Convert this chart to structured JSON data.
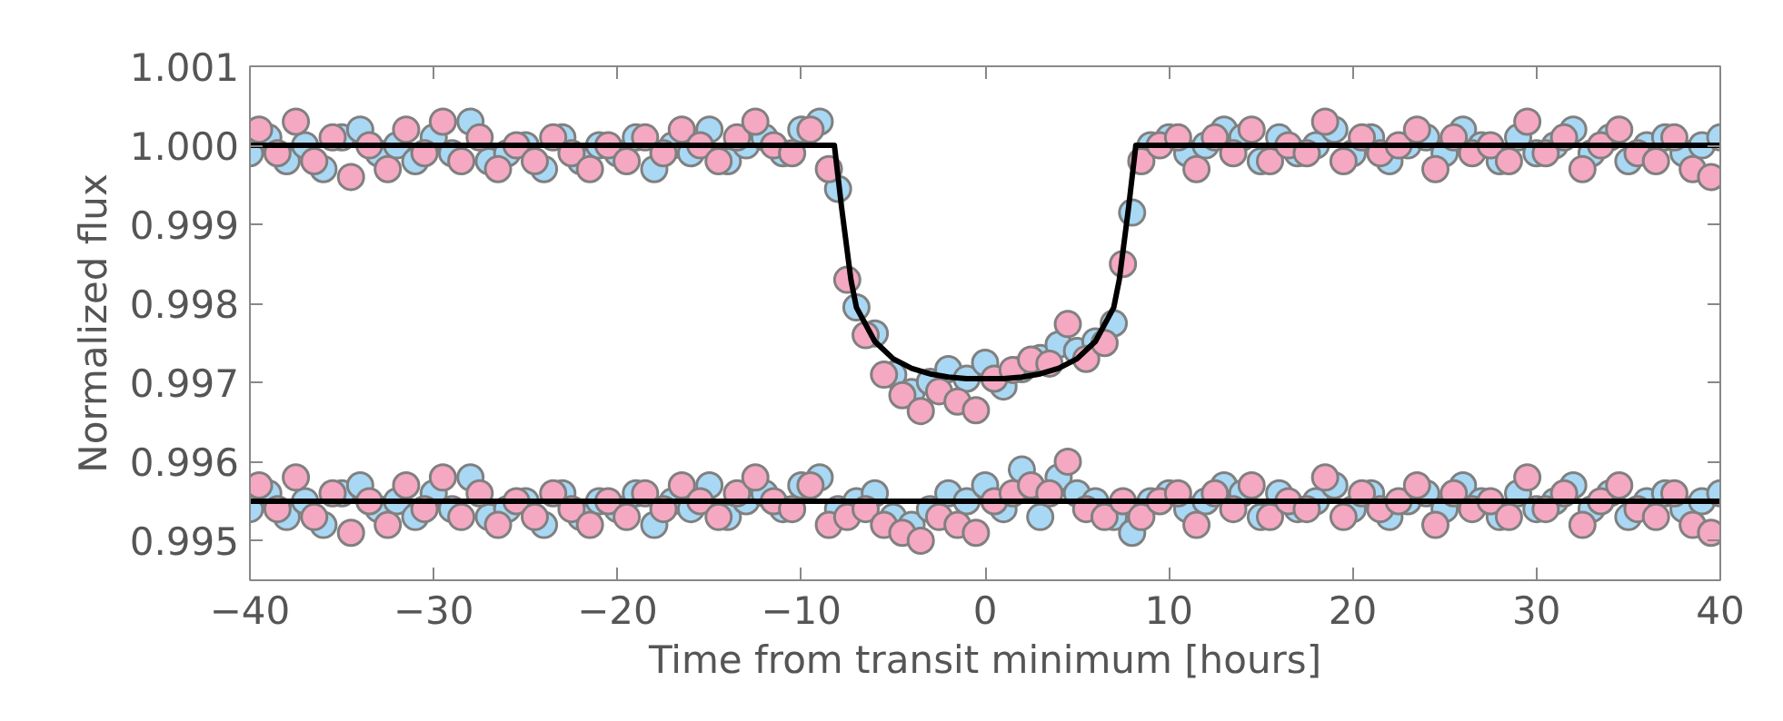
{
  "chart_data": {
    "type": "scatter",
    "xlabel": "Time from transit minimum [hours]",
    "ylabel": "Normalized flux",
    "xlim": [
      -40,
      40
    ],
    "ylim": [
      0.9945,
      1.001
    ],
    "xticks": [
      {
        "value": -40,
        "label": "−40"
      },
      {
        "value": -30,
        "label": "−30"
      },
      {
        "value": -20,
        "label": "−20"
      },
      {
        "value": -10,
        "label": "−10"
      },
      0,
      10,
      20,
      30,
      40
    ],
    "yticks": [
      0.995,
      0.996,
      0.997,
      0.998,
      0.999,
      {
        "value": 1.0,
        "label": "1.000"
      },
      1.001
    ],
    "grid": false,
    "series": [
      {
        "marker": "circle",
        "color": "#a8d8f4",
        "x": [
          -40,
          -39,
          -38,
          -37,
          -36,
          -35,
          -34,
          -33,
          -32,
          -31,
          -30,
          -29,
          -28,
          -27,
          -26,
          -25,
          -24,
          -23,
          -22,
          -21,
          -20,
          -19,
          -18,
          -17,
          -16,
          -15,
          -14,
          -13,
          -12,
          -11,
          -10,
          -9,
          -8,
          -7,
          -6,
          -5,
          -4,
          -3,
          -2,
          -1,
          0,
          1,
          2,
          3,
          4,
          5,
          6,
          7,
          8,
          9,
          10,
          11,
          12,
          13,
          14,
          15,
          16,
          17,
          18,
          19,
          20,
          21,
          22,
          23,
          24,
          25,
          26,
          27,
          28,
          29,
          30,
          31,
          32,
          33,
          34,
          35,
          36,
          37,
          38,
          39,
          40
        ],
        "values": [
          0.9999,
          1.0001,
          0.9998,
          1.0,
          0.9997,
          1.0001,
          1.0002,
          0.9999,
          1.0,
          0.9998,
          1.0001,
          0.9999,
          1.0003,
          0.9998,
          0.9999,
          1.0,
          0.9997,
          1.0001,
          0.9998,
          1.0,
          0.9999,
          1.0001,
          0.9997,
          1.0,
          0.9999,
          1.0002,
          0.9998,
          1.0,
          1.0001,
          0.9999,
          1.0002,
          1.0003,
          0.99945,
          0.99795,
          0.99762,
          0.9971,
          0.99688,
          0.99701,
          0.99717,
          0.99705,
          0.99725,
          0.99695,
          0.99717,
          0.99731,
          0.99748,
          0.9974,
          0.99752,
          0.99775,
          0.99915,
          1.0,
          1.0001,
          0.9999,
          1.0,
          1.0002,
          1.0001,
          0.9998,
          1.0001,
          0.9999,
          1.0,
          1.0002,
          0.9999,
          1.0001,
          0.9998,
          1.0,
          1.0001,
          0.9999,
          1.0002,
          1.0,
          0.9998,
          1.0001,
          0.9999,
          1.0,
          1.0002,
          0.9999,
          1.0001,
          0.9998,
          1.0,
          1.0001,
          0.9999,
          1.0,
          1.0001
        ]
      },
      {
        "marker": "circle",
        "color": "#f5a8c2",
        "x": [
          -39.5,
          -38.5,
          -37.5,
          -36.5,
          -35.5,
          -34.5,
          -33.5,
          -32.5,
          -31.5,
          -30.5,
          -29.5,
          -28.5,
          -27.5,
          -26.5,
          -25.5,
          -24.5,
          -23.5,
          -22.5,
          -21.5,
          -20.5,
          -19.5,
          -18.5,
          -17.5,
          -16.5,
          -15.5,
          -14.5,
          -13.5,
          -12.5,
          -11.5,
          -10.5,
          -9.5,
          -8.5,
          -7.5,
          -6.5,
          -5.5,
          -4.5,
          -3.5,
          -2.5,
          -1.5,
          -0.5,
          0.5,
          1.5,
          2.5,
          3.5,
          4.5,
          5.5,
          6.5,
          7.5,
          8.5,
          9.5,
          10.5,
          11.5,
          12.5,
          13.5,
          14.5,
          15.5,
          16.5,
          17.5,
          18.5,
          19.5,
          20.5,
          21.5,
          22.5,
          23.5,
          24.5,
          25.5,
          26.5,
          27.5,
          28.5,
          29.5,
          30.5,
          31.5,
          32.5,
          33.5,
          34.5,
          35.5,
          36.5,
          37.5,
          38.5,
          39.5
        ],
        "values": [
          1.0002,
          0.9999,
          1.0003,
          0.9998,
          1.0001,
          0.9996,
          1.0,
          0.9997,
          1.0002,
          0.9999,
          1.0003,
          0.9998,
          1.0001,
          0.9997,
          1.0,
          0.9998,
          1.0001,
          0.9999,
          0.9997,
          1.0,
          0.9998,
          1.0001,
          0.9999,
          1.0002,
          1.0,
          0.9998,
          1.0001,
          1.0003,
          1.0,
          0.9999,
          1.0002,
          0.9997,
          0.9983,
          0.9976,
          0.9971,
          0.99684,
          0.99664,
          0.99689,
          0.99676,
          0.99665,
          0.99705,
          0.99716,
          0.99729,
          0.99724,
          0.99774,
          0.9973,
          0.9975,
          0.9985,
          0.9998,
          1.0,
          1.0001,
          0.9997,
          1.0001,
          0.9999,
          1.0002,
          0.9998,
          1.0,
          0.9999,
          1.0003,
          0.9998,
          1.0001,
          0.9999,
          1.0,
          1.0002,
          0.9997,
          1.0001,
          0.9999,
          1.0,
          0.9998,
          1.0003,
          0.9999,
          1.0001,
          0.9997,
          1.0,
          1.0002,
          0.9999,
          0.9998,
          1.0001,
          0.9997,
          0.9996
        ]
      },
      {
        "marker": "circle",
        "color": "#a8d8f4",
        "x": [
          -40,
          -39,
          -38,
          -37,
          -36,
          -35,
          -34,
          -33,
          -32,
          -31,
          -30,
          -29,
          -28,
          -27,
          -26,
          -25,
          -24,
          -23,
          -22,
          -21,
          -20,
          -19,
          -18,
          -17,
          -16,
          -15,
          -14,
          -13,
          -12,
          -11,
          -10,
          -9,
          -8,
          -7,
          -6,
          -5,
          -4,
          -3,
          -2,
          -1,
          0,
          1,
          2,
          3,
          4,
          5,
          6,
          7,
          8,
          9,
          10,
          11,
          12,
          13,
          14,
          15,
          16,
          17,
          18,
          19,
          20,
          21,
          22,
          23,
          24,
          25,
          26,
          27,
          28,
          29,
          30,
          31,
          32,
          33,
          34,
          35,
          36,
          37,
          38,
          39,
          40
        ],
        "values": [
          0.9954,
          0.9956,
          0.9953,
          0.9955,
          0.9952,
          0.9956,
          0.9957,
          0.9954,
          0.9955,
          0.9953,
          0.9956,
          0.9954,
          0.9958,
          0.9953,
          0.9954,
          0.9955,
          0.9952,
          0.9956,
          0.9953,
          0.9955,
          0.9954,
          0.9956,
          0.9952,
          0.9955,
          0.9954,
          0.9957,
          0.9953,
          0.9955,
          0.9956,
          0.9954,
          0.9957,
          0.9958,
          0.9954,
          0.9955,
          0.9956,
          0.9953,
          0.9952,
          0.9954,
          0.9956,
          0.9955,
          0.9957,
          0.9954,
          0.9959,
          0.9953,
          0.9958,
          0.9956,
          0.9955,
          0.9953,
          0.9951,
          0.9955,
          0.9956,
          0.9954,
          0.9955,
          0.9957,
          0.9956,
          0.9953,
          0.9956,
          0.9954,
          0.9955,
          0.9957,
          0.9954,
          0.9956,
          0.9953,
          0.9955,
          0.9956,
          0.9954,
          0.9957,
          0.9955,
          0.9953,
          0.9956,
          0.9954,
          0.9955,
          0.9957,
          0.9954,
          0.9956,
          0.9953,
          0.9955,
          0.9956,
          0.9954,
          0.9955,
          0.9956
        ]
      },
      {
        "marker": "circle",
        "color": "#f5a8c2",
        "x": [
          -39.5,
          -38.5,
          -37.5,
          -36.5,
          -35.5,
          -34.5,
          -33.5,
          -32.5,
          -31.5,
          -30.5,
          -29.5,
          -28.5,
          -27.5,
          -26.5,
          -25.5,
          -24.5,
          -23.5,
          -22.5,
          -21.5,
          -20.5,
          -19.5,
          -18.5,
          -17.5,
          -16.5,
          -15.5,
          -14.5,
          -13.5,
          -12.5,
          -11.5,
          -10.5,
          -9.5,
          -8.5,
          -7.5,
          -6.5,
          -5.5,
          -4.5,
          -3.5,
          -2.5,
          -1.5,
          -0.5,
          0.5,
          1.5,
          2.5,
          3.5,
          4.5,
          5.5,
          6.5,
          7.5,
          8.5,
          9.5,
          10.5,
          11.5,
          12.5,
          13.5,
          14.5,
          15.5,
          16.5,
          17.5,
          18.5,
          19.5,
          20.5,
          21.5,
          22.5,
          23.5,
          24.5,
          25.5,
          26.5,
          27.5,
          28.5,
          29.5,
          30.5,
          31.5,
          32.5,
          33.5,
          34.5,
          35.5,
          36.5,
          37.5,
          38.5,
          39.5
        ],
        "values": [
          0.9957,
          0.9954,
          0.9958,
          0.9953,
          0.9956,
          0.9951,
          0.9955,
          0.9952,
          0.9957,
          0.9954,
          0.9958,
          0.9953,
          0.9956,
          0.9952,
          0.9955,
          0.9953,
          0.9956,
          0.9954,
          0.9952,
          0.9955,
          0.9953,
          0.9956,
          0.9954,
          0.9957,
          0.9955,
          0.9953,
          0.9956,
          0.9958,
          0.9955,
          0.9954,
          0.9957,
          0.9952,
          0.9953,
          0.9954,
          0.9952,
          0.9951,
          0.995,
          0.9953,
          0.9952,
          0.9951,
          0.9955,
          0.9956,
          0.9957,
          0.9956,
          0.996,
          0.9954,
          0.9953,
          0.9955,
          0.9953,
          0.9955,
          0.9956,
          0.9952,
          0.9956,
          0.9954,
          0.9957,
          0.9953,
          0.9955,
          0.9954,
          0.9958,
          0.9953,
          0.9956,
          0.9954,
          0.9955,
          0.9957,
          0.9952,
          0.9956,
          0.9954,
          0.9955,
          0.9953,
          0.9958,
          0.9954,
          0.9956,
          0.9952,
          0.9955,
          0.9957,
          0.9954,
          0.9953,
          0.9956,
          0.9952,
          0.9951
        ]
      },
      {
        "type": "line",
        "line_style": "solid",
        "color": "#000000",
        "x": [
          -40,
          -8.2,
          -7.8,
          -7.3,
          -7,
          -6,
          -5,
          -4,
          -3,
          -2,
          -1,
          0,
          1,
          2,
          3,
          4,
          5,
          6,
          7,
          7.3,
          7.8,
          8.2,
          40
        ],
        "values": [
          1.0,
          1.0,
          0.9992,
          0.9983,
          0.99795,
          0.99752,
          0.9973,
          0.99718,
          0.99711,
          0.99707,
          0.99705,
          0.99705,
          0.99705,
          0.99707,
          0.99711,
          0.99718,
          0.9973,
          0.99752,
          0.99795,
          0.9983,
          0.9992,
          1.0,
          1.0
        ]
      },
      {
        "type": "line",
        "line_style": "solid",
        "color": "#000000",
        "x": [
          -40,
          40
        ],
        "values": [
          0.9955,
          0.9955
        ]
      }
    ]
  }
}
